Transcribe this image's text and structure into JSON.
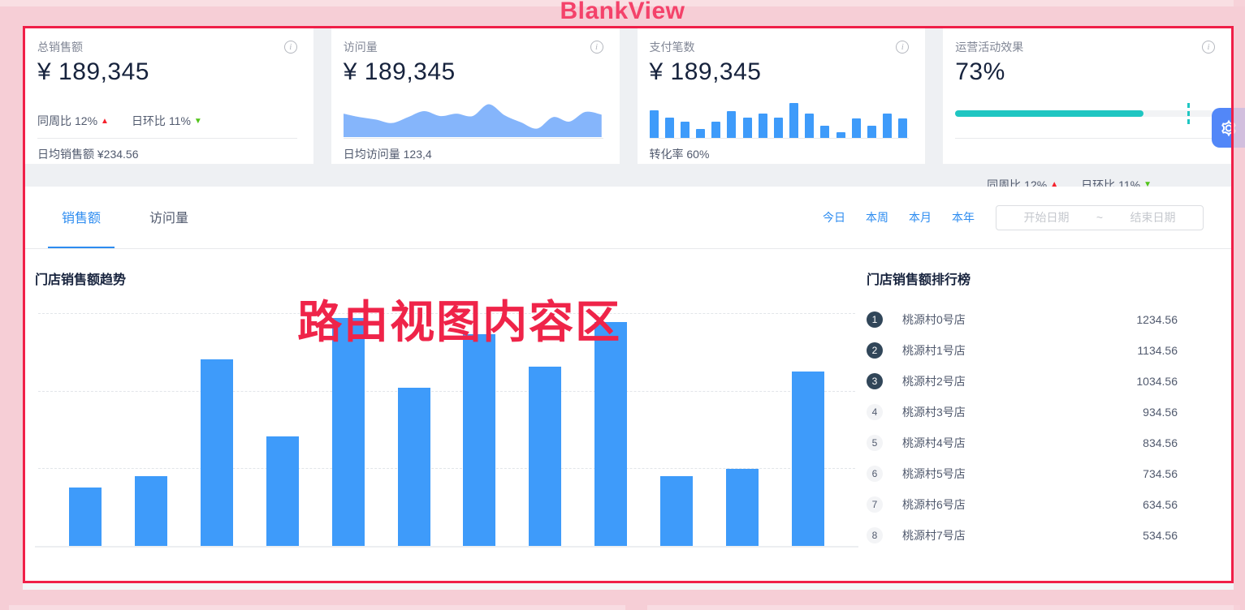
{
  "overlay": {
    "title": "BlankView",
    "route_area_label": "路由视图内容区"
  },
  "stat_cards": [
    {
      "title": "总销售额",
      "info_icon": "info-circle-icon",
      "value": "¥ 189,345",
      "trends": [
        {
          "label": "同周比",
          "value": "12%",
          "direction": "up"
        },
        {
          "label": "日环比",
          "value": "11%",
          "direction": "down"
        }
      ],
      "footer": "日均销售额 ¥234.56"
    },
    {
      "title": "访问量",
      "info_icon": "info-circle-icon",
      "value": "¥ 189,345",
      "footer": "日均访问量 123,4"
    },
    {
      "title": "支付笔数",
      "info_icon": "info-circle-icon",
      "value": "¥ 189,345",
      "footer": "转化率 60%"
    },
    {
      "title": "运营活动效果",
      "info_icon": "info-circle-icon",
      "value": "73%",
      "progress": {
        "percent": 73,
        "target_percent": 90
      },
      "trends": [
        {
          "label": "同周比",
          "value": "12%",
          "direction": "up"
        },
        {
          "label": "日环比",
          "value": "11%",
          "direction": "down"
        }
      ]
    }
  ],
  "panel": {
    "tabs": [
      {
        "label": "销售额",
        "active": true
      },
      {
        "label": "访问量",
        "active": false
      }
    ],
    "quick_ranges": [
      "今日",
      "本周",
      "本月",
      "本年"
    ],
    "date_range": {
      "start_placeholder": "开始日期",
      "separator": "~",
      "end_placeholder": "结束日期"
    },
    "trend_title": "门店销售额趋势",
    "ranking_title": "门店销售额排行榜",
    "ranking": [
      {
        "rank": 1,
        "name": "桃源村0号店",
        "value": "1234.56"
      },
      {
        "rank": 2,
        "name": "桃源村1号店",
        "value": "1134.56"
      },
      {
        "rank": 3,
        "name": "桃源村2号店",
        "value": "1034.56"
      },
      {
        "rank": 4,
        "name": "桃源村3号店",
        "value": "934.56"
      },
      {
        "rank": 5,
        "name": "桃源村4号店",
        "value": "834.56"
      },
      {
        "rank": 6,
        "name": "桃源村5号店",
        "value": "734.56"
      },
      {
        "rank": 7,
        "name": "桃源村6号店",
        "value": "634.56"
      },
      {
        "rank": 8,
        "name": "桃源村7号店",
        "value": "534.56"
      }
    ]
  },
  "chart_data": [
    {
      "type": "bar",
      "title": "门店销售额趋势",
      "ylabel": "",
      "xlabel": "",
      "axis_tick_labels_visible": false,
      "ylim": [
        0,
        100
      ],
      "gridlines_percent": [
        33.3,
        66.7,
        100
      ],
      "grid_style": "dashed horizontal",
      "bar_color": "#3e9bfa",
      "values_percent_of_max": [
        25,
        30,
        80,
        47,
        98,
        68,
        91,
        77,
        96,
        30,
        33,
        75
      ]
    },
    {
      "type": "area",
      "title": "访问量迷你趋势图",
      "fill_color": "#85b5fb",
      "values_percent": [
        65,
        55,
        48,
        38,
        55,
        72,
        58,
        65,
        58,
        92,
        60,
        40,
        22,
        55,
        42,
        70,
        62
      ]
    },
    {
      "type": "bar",
      "title": "支付笔数迷你柱状图",
      "bar_color": "#3e9bfa",
      "values_percent": [
        73,
        53,
        43,
        24,
        43,
        71,
        53,
        63,
        53,
        91,
        63,
        33,
        14,
        51,
        33,
        63,
        51
      ]
    },
    {
      "type": "progress",
      "title": "运营活动效果进度条",
      "percent": 73,
      "target_percent": 90,
      "color": "#1fc6c2"
    }
  ],
  "floating": {
    "settings_icon": "gear-icon"
  },
  "colors": {
    "accent_red": "#f01f48",
    "overlay_pink": "#f6ced6",
    "link_blue": "#2d8cf0",
    "bar_blue": "#3e9bfa",
    "area_blue": "#85b5fb",
    "progress_teal": "#1fc6c2",
    "rank_badge_dark": "#314659"
  }
}
